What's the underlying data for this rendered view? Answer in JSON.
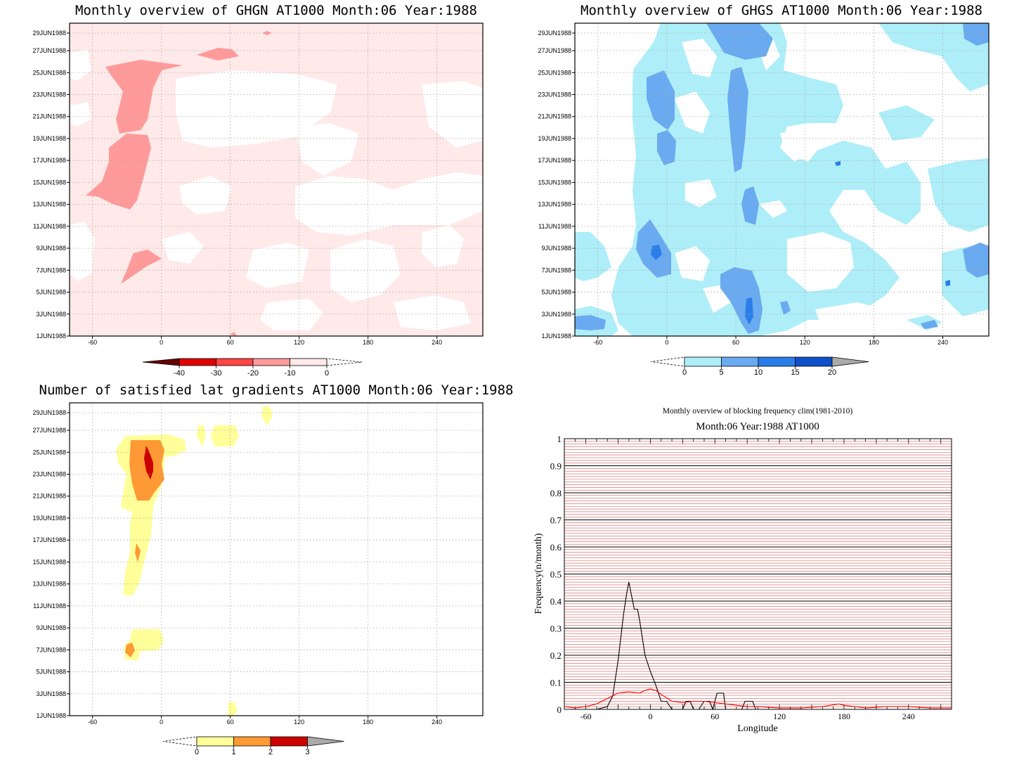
{
  "chart_data": [
    {
      "type": "heatmap",
      "title": "Monthly overview of GHGN AT1000 Month:06 Year:1988",
      "x_ticks": [
        "-60",
        "0",
        "60",
        "120",
        "180",
        "240"
      ],
      "y_ticks": [
        "1JUN1988",
        "3JUN1988",
        "5JUN1988",
        "7JUN1988",
        "9JUN1988",
        "11JUN1988",
        "13JUN1988",
        "15JUN1988",
        "17JUN1988",
        "19JUN1988",
        "21JUN1988",
        "23JUN1988",
        "25JUN1988",
        "27JUN1988",
        "29JUN1988"
      ],
      "xlim": [
        -80,
        280
      ],
      "colorbar": {
        "labels": [
          "-40",
          "-30",
          "-20",
          "-10",
          "0"
        ],
        "colors": [
          "#660000",
          "#e00000",
          "#ff4444",
          "#ff9a9a",
          "#ffe9e9"
        ]
      },
      "grid": true
    },
    {
      "type": "heatmap",
      "title": "Monthly overview of GHGS AT1000 Month:06 Year:1988",
      "x_ticks": [
        "-60",
        "0",
        "60",
        "120",
        "180",
        "240"
      ],
      "y_ticks": [
        "1JUN1988",
        "3JUN1988",
        "5JUN1988",
        "7JUN1988",
        "9JUN1988",
        "11JUN1988",
        "13JUN1988",
        "15JUN1988",
        "17JUN1988",
        "19JUN1988",
        "21JUN1988",
        "23JUN1988",
        "25JUN1988",
        "27JUN1988",
        "29JUN1988"
      ],
      "xlim": [
        -80,
        280
      ],
      "colorbar": {
        "labels": [
          "0",
          "5",
          "10",
          "15",
          "20"
        ],
        "colors": [
          "#aeeef8",
          "#6aaaf0",
          "#2a7ee8",
          "#1050c8",
          "#aaaaaa"
        ]
      },
      "grid": true
    },
    {
      "type": "heatmap",
      "title": "Number of satisfied lat gradients AT1000 Month:06 Year:1988",
      "x_ticks": [
        "-60",
        "0",
        "60",
        "120",
        "180",
        "240"
      ],
      "y_ticks": [
        "1JUN1988",
        "3JUN1988",
        "5JUN1988",
        "7JUN1988",
        "9JUN1988",
        "11JUN1988",
        "13JUN1988",
        "15JUN1988",
        "17JUN1988",
        "19JUN1988",
        "21JUN1988",
        "23JUN1988",
        "25JUN1988",
        "27JUN1988",
        "29JUN1988"
      ],
      "xlim": [
        -80,
        280
      ],
      "colorbar": {
        "labels": [
          "0",
          "1",
          "2",
          "3"
        ],
        "colors": [
          "#ffff99",
          "#ff9933",
          "#cc0000",
          "#aaaaaa"
        ]
      },
      "grid": true
    },
    {
      "type": "line",
      "title": "Monthly overview of blocking frequency clim(1981-2010)",
      "subtitle": "Month:06 Year:1988  AT1000",
      "xlabel": "Longitude",
      "ylabel": "Frequency(n/month)",
      "x_ticks": [
        "-60",
        "0",
        "60",
        "120",
        "180",
        "240"
      ],
      "y_ticks": [
        "0",
        "0.1",
        "0.2",
        "0.3",
        "0.4",
        "0.5",
        "0.6",
        "0.7",
        "0.8",
        "0.9",
        "1"
      ],
      "xlim": [
        -80,
        280
      ],
      "ylim": [
        0,
        1
      ],
      "series": [
        {
          "color": "#000000",
          "x": [
            -80,
            -60,
            -50,
            -40,
            -35,
            -30,
            -25,
            -22,
            -20,
            -18,
            -15,
            -12,
            -10,
            -5,
            0,
            5,
            10,
            15,
            20,
            25,
            30,
            33,
            37,
            40,
            45,
            50,
            55,
            58,
            62,
            65,
            68,
            70,
            75,
            80,
            85,
            88,
            92,
            95,
            98,
            100,
            110,
            120,
            140,
            160,
            180,
            200,
            220,
            240,
            260,
            280
          ],
          "y": [
            0,
            0,
            0,
            0.01,
            0.05,
            0.18,
            0.35,
            0.43,
            0.47,
            0.43,
            0.37,
            0.37,
            0.33,
            0.2,
            0.14,
            0.09,
            0.03,
            0.03,
            0,
            0,
            0,
            0.03,
            0.03,
            0,
            0,
            0.03,
            0.03,
            0,
            0.06,
            0.06,
            0.06,
            0,
            0,
            0,
            0,
            0.03,
            0.03,
            0.03,
            0,
            0,
            0,
            0,
            0,
            0,
            0,
            0,
            0,
            0,
            0,
            0
          ]
        },
        {
          "color": "#ff0000",
          "x": [
            -80,
            -70,
            -60,
            -50,
            -40,
            -30,
            -20,
            -10,
            -5,
            0,
            5,
            10,
            20,
            30,
            40,
            50,
            60,
            70,
            80,
            90,
            100,
            120,
            140,
            160,
            175,
            180,
            190,
            200,
            220,
            240,
            260,
            280
          ],
          "y": [
            0.01,
            0.005,
            0.01,
            0.02,
            0.04,
            0.06,
            0.065,
            0.06,
            0.07,
            0.075,
            0.07,
            0.055,
            0.03,
            0.025,
            0.03,
            0.03,
            0.025,
            0.02,
            0.015,
            0.01,
            0.01,
            0.005,
            0.005,
            0.01,
            0.02,
            0.015,
            0.01,
            0.005,
            0.01,
            0.01,
            0.005,
            0.005
          ]
        }
      ],
      "grid": true
    }
  ]
}
